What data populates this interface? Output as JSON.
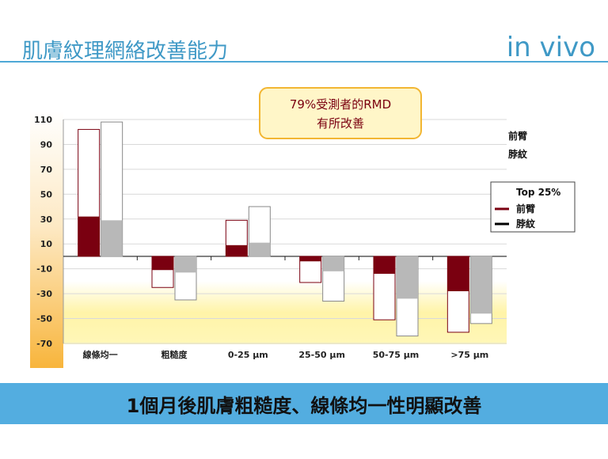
{
  "slide": {
    "title": "肌膚紋理網絡改善能力",
    "tag": "in vivo",
    "banner": "1個月後肌膚粗糙度、線條均一性明顯改善"
  },
  "callout": {
    "line1": "79%受測者的RMD",
    "line2": "有所改善"
  },
  "colors": {
    "forearm": "#7a0010",
    "wrinkle": "#b8b8b8",
    "accent": "#3f99c6",
    "callout_border": "#f2b632",
    "callout_fill": "#fff6c8"
  },
  "chart_data": {
    "type": "bar",
    "categories": [
      "線條均一",
      "粗糙度",
      "0-25 µm",
      "25-50 µm",
      "50-75 µm",
      ">75 µm"
    ],
    "series": [
      {
        "name": "前臂",
        "values": [
          32,
          -11,
          9,
          -4,
          -14,
          -28
        ]
      },
      {
        "name": "脖紋",
        "values": [
          29,
          -13,
          11,
          -12,
          -34,
          -46
        ]
      }
    ],
    "top25": [
      {
        "name": "前臂",
        "values": [
          102,
          -25,
          29,
          -21,
          -51,
          -61
        ]
      },
      {
        "name": "脖紋",
        "values": [
          108,
          -35,
          40,
          -36,
          -64,
          -54
        ]
      }
    ],
    "ylim": [
      -70,
      110
    ],
    "yticks": [
      110,
      90,
      70,
      50,
      30,
      10,
      -10,
      -30,
      -50,
      -70
    ],
    "legend_top": [
      "前臂",
      "脖紋"
    ],
    "legend_box": {
      "title": "Top 25%",
      "items": [
        "前臂",
        "脖紋"
      ]
    }
  }
}
